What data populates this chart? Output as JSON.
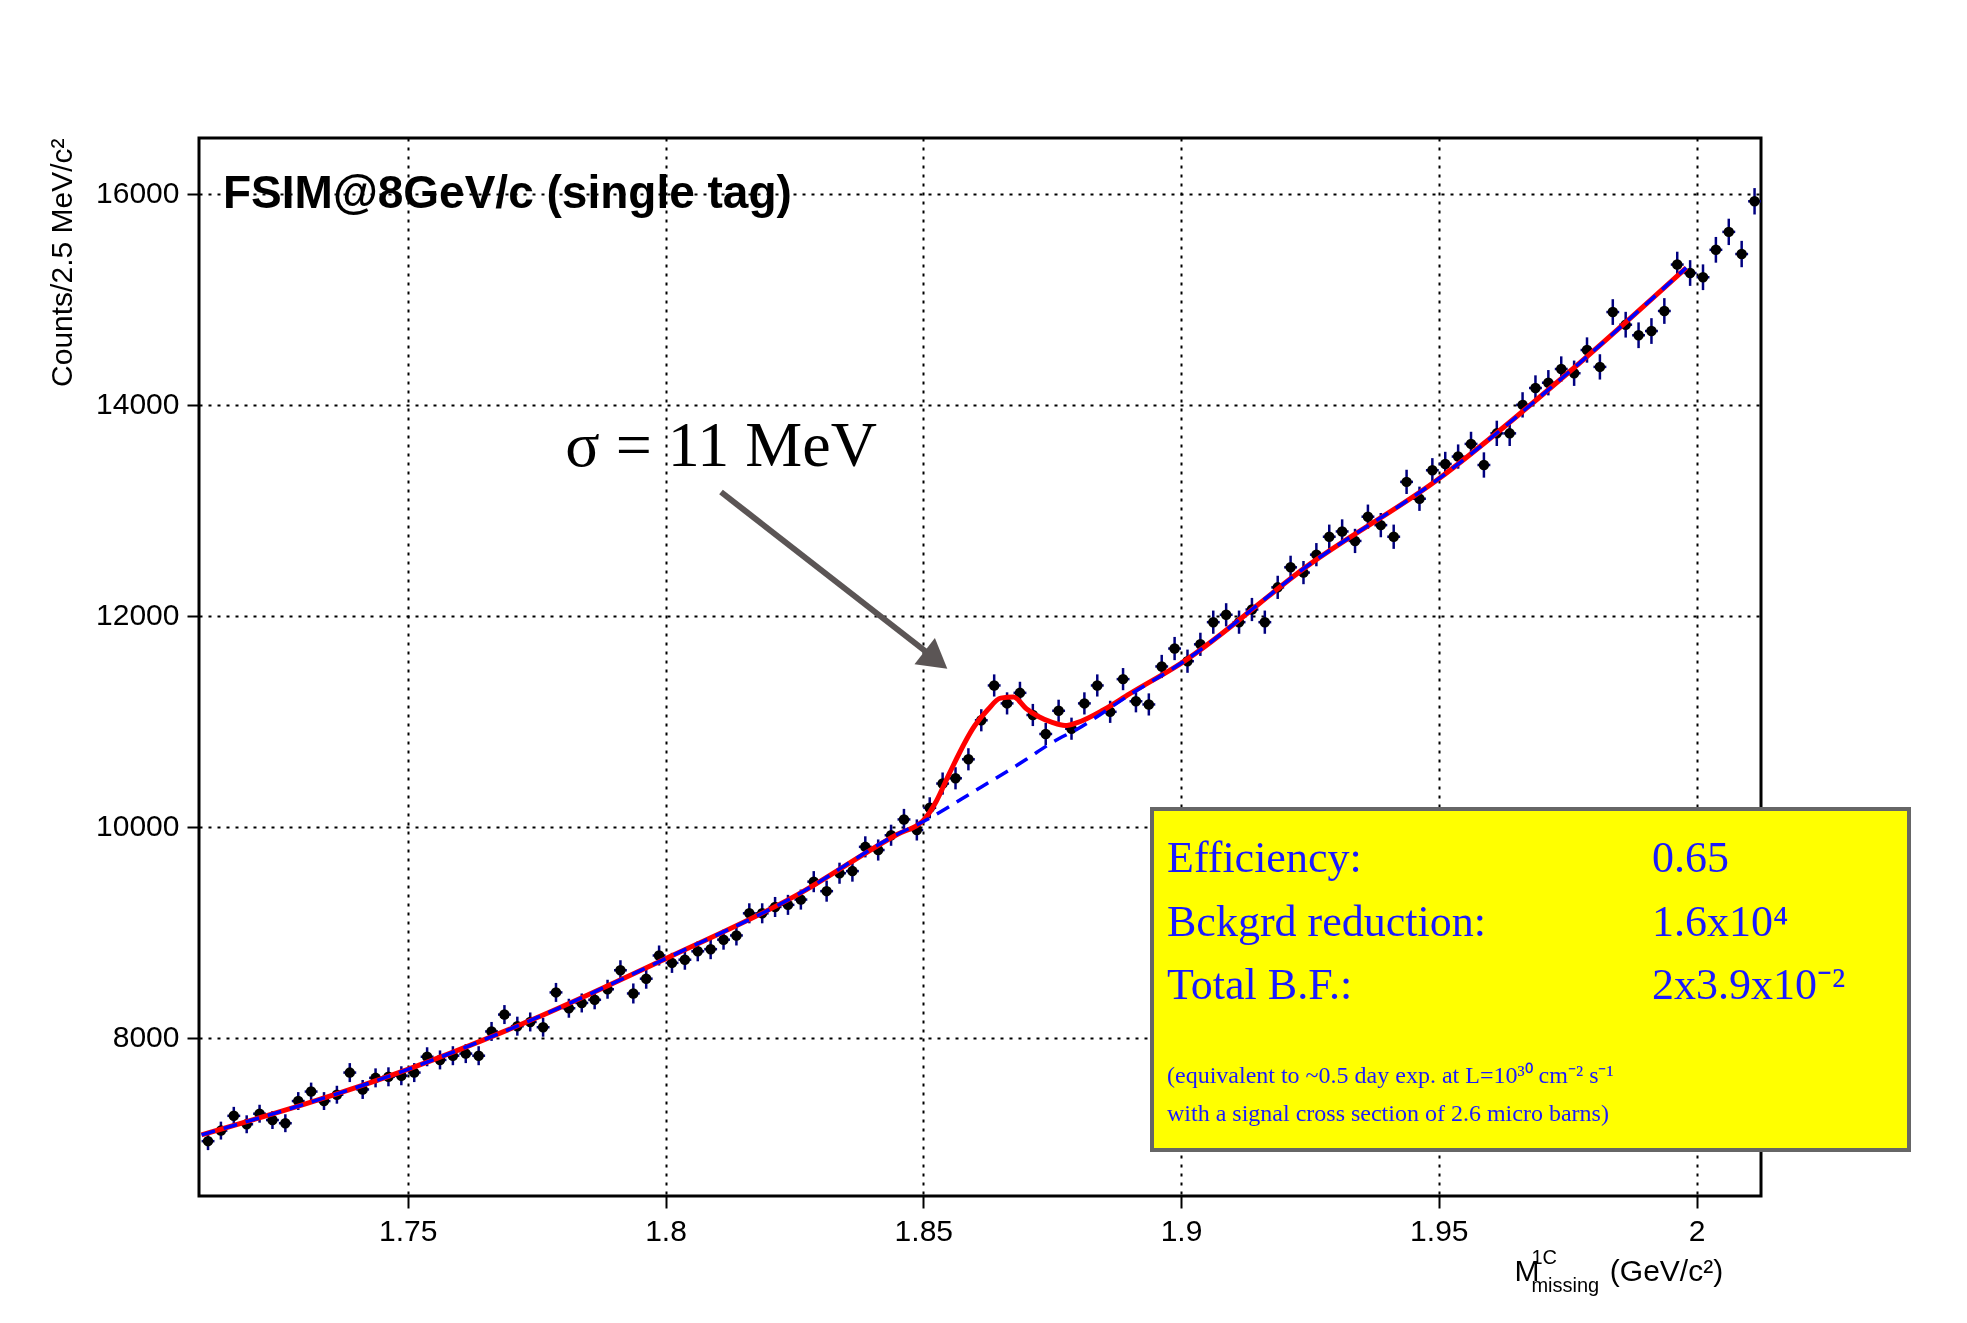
{
  "chart_data": {
    "type": "scatter",
    "title": "FSIM@8GeV/c (single tag)",
    "xlabel": "M$^{1C}$$_{missing}$ (GeV/c²)",
    "ylabel": "Counts/2.5 MeV/c²",
    "xlim": [
      1.7095,
      2.0125
    ],
    "ylim": [
      6500,
      16530
    ],
    "xticks": [
      1.75,
      1.8,
      1.85,
      1.9,
      1.95,
      2
    ],
    "yticks": [
      8000,
      10000,
      12000,
      14000,
      16000
    ],
    "grid": true,
    "series": [
      {
        "color": "#000000",
        "marker": "circle",
        "x": [
          1.71125,
          1.71375,
          1.71625,
          1.71875,
          1.72125,
          1.72375,
          1.72625,
          1.72875,
          1.73125,
          1.73375,
          1.73625,
          1.73875,
          1.74125,
          1.74375,
          1.74625,
          1.74875,
          1.75125,
          1.75375,
          1.75625,
          1.75875,
          1.76125,
          1.76375,
          1.76625,
          1.76875,
          1.77125,
          1.77375,
          1.77625,
          1.77875,
          1.78125,
          1.78375,
          1.78625,
          1.78875,
          1.79125,
          1.79375,
          1.79625,
          1.79875,
          1.80125,
          1.80375,
          1.80625,
          1.80875,
          1.81125,
          1.81375,
          1.81625,
          1.81875,
          1.82125,
          1.82375,
          1.82625,
          1.82875,
          1.83125,
          1.83375,
          1.83625,
          1.83875,
          1.84125,
          1.84375,
          1.84625,
          1.84875,
          1.85125,
          1.85375,
          1.85625,
          1.85875,
          1.86125,
          1.86375,
          1.86625,
          1.86875,
          1.87125,
          1.87375,
          1.87625,
          1.87875,
          1.88125,
          1.88375,
          1.88625,
          1.88875,
          1.89125,
          1.89375,
          1.89625,
          1.89875,
          1.90125,
          1.90375,
          1.90625,
          1.90875,
          1.91125,
          1.91375,
          1.91625,
          1.91875,
          1.92125,
          1.92375,
          1.92625,
          1.92875,
          1.93125,
          1.93375,
          1.93625,
          1.93875,
          1.94125,
          1.94375,
          1.94625,
          1.94875,
          1.95125,
          1.95375,
          1.95625,
          1.95875,
          1.96125,
          1.96375,
          1.96625,
          1.96875,
          1.97125,
          1.97375,
          1.97625,
          1.97875,
          1.98125,
          1.98375,
          1.98625,
          1.98875,
          1.99125,
          1.99375,
          1.99625,
          1.99875,
          2.00125,
          2.00375,
          2.00625,
          2.00875,
          2.01125
        ],
        "values": [
          7020,
          7120,
          7260,
          7180,
          7280,
          7220,
          7190,
          7400,
          7490,
          7400,
          7460,
          7670,
          7510,
          7620,
          7630,
          7640,
          7670,
          7820,
          7790,
          7830,
          7850,
          7830,
          8060,
          8220,
          8110,
          8150,
          8100,
          8430,
          8280,
          8330,
          8360,
          8460,
          8640,
          8420,
          8560,
          8780,
          8710,
          8740,
          8820,
          8840,
          8930,
          8970,
          9180,
          9180,
          9240,
          9260,
          9310,
          9480,
          9390,
          9560,
          9580,
          9810,
          9780,
          9920,
          10070,
          9970,
          10180,
          10410,
          10460,
          10640,
          11010,
          11340,
          11170,
          11270,
          11060,
          10880,
          11100,
          10930,
          11170,
          11340,
          11090,
          11400,
          11190,
          11160,
          11520,
          11690,
          11570,
          11730,
          11940,
          12010,
          11940,
          12060,
          11940,
          12270,
          12460,
          12410,
          12580,
          12750,
          12800,
          12710,
          12940,
          12860,
          12750,
          13270,
          13110,
          13380,
          13440,
          13510,
          13630,
          13430,
          13730,
          13730,
          14000,
          14160,
          14210,
          14340,
          14300,
          14520,
          14360,
          14880,
          14760,
          14660,
          14700,
          14890,
          15330,
          15250,
          15210,
          15470,
          15640,
          15430,
          15930
        ],
        "errors": [
          85,
          85,
          85,
          85,
          85,
          85,
          85,
          85,
          85,
          85,
          85,
          90,
          90,
          90,
          90,
          90,
          90,
          90,
          90,
          90,
          90,
          90,
          90,
          90,
          90,
          90,
          90,
          90,
          90,
          90,
          90,
          90,
          95,
          95,
          95,
          95,
          95,
          95,
          95,
          95,
          95,
          95,
          95,
          95,
          95,
          95,
          95,
          100,
          100,
          100,
          100,
          100,
          100,
          100,
          100,
          100,
          100,
          105,
          105,
          105,
          105,
          105,
          105,
          105,
          105,
          105,
          105,
          105,
          105,
          105,
          105,
          105,
          105,
          105,
          110,
          110,
          110,
          110,
          110,
          110,
          110,
          110,
          110,
          110,
          110,
          110,
          110,
          115,
          115,
          115,
          115,
          115,
          115,
          115,
          115,
          115,
          115,
          115,
          115,
          120,
          120,
          120,
          120,
          120,
          120,
          120,
          120,
          120,
          120,
          122,
          122,
          122,
          122,
          122,
          122,
          122,
          122,
          122,
          125,
          125,
          125
        ],
        "xerrors": [
          0.00125,
          0.00125,
          0.00125,
          0.00125,
          0.00125,
          0.00125,
          0.00125,
          0.00125,
          0.00125,
          0.00125,
          0.00125,
          0.00125,
          0.00125,
          0.00125,
          0.00125,
          0.00125,
          0.00125,
          0.00125,
          0.00125,
          0.00125,
          0.00125,
          0.00125,
          0.00125,
          0.00125,
          0.00125,
          0.00125,
          0.00125,
          0.00125,
          0.00125,
          0.00125,
          0.00125,
          0.00125,
          0.00125,
          0.00125,
          0.00125,
          0.00125,
          0.00125,
          0.00125,
          0.00125,
          0.00125,
          0.00125,
          0.00125,
          0.00125,
          0.00125,
          0.00125,
          0.00125,
          0.00125,
          0.00125,
          0.00125,
          0.00125,
          0.00125,
          0.00125,
          0.00125,
          0.00125,
          0.00125,
          0.00125,
          0.00125,
          0.00125,
          0.00125,
          0.00125,
          0.00125,
          0.00125,
          0.00125,
          0.00125,
          0.00125,
          0.00125,
          0.00125,
          0.00125,
          0.00125,
          0.00125,
          0.00125,
          0.00125,
          0.00125,
          0.00125,
          0.00125,
          0.00125,
          0.00125,
          0.00125,
          0.00125,
          0.00125,
          0.00125,
          0.00125,
          0.00125,
          0.00125,
          0.00125,
          0.00125,
          0.00125,
          0.00125,
          0.00125,
          0.00125,
          0.00125,
          0.00125,
          0.00125,
          0.00125,
          0.00125,
          0.00125,
          0.00125,
          0.00125,
          0.00125,
          0.00125,
          0.00125,
          0.00125,
          0.00125,
          0.00125,
          0.00125,
          0.00125,
          0.00125,
          0.00125,
          0.00125,
          0.00125,
          0.00125,
          0.00125,
          0.00125,
          0.00125,
          0.00125,
          0.00125,
          0.00125,
          0.00125,
          0.00125,
          0.00125,
          0.00125
        ]
      },
      {
        "type": "line",
        "color": "#ff0000",
        "line_style": "solid",
        "x": [
          1.71,
          1.75,
          1.775,
          1.8,
          1.825,
          1.845,
          1.85,
          1.8525,
          1.855,
          1.86,
          1.8625,
          1.865,
          1.8675,
          1.87,
          1.875,
          1.8775,
          1.88,
          1.885,
          1.89,
          1.9,
          1.925,
          1.95,
          1.975,
          1.998
        ],
        "values": [
          7080,
          7700,
          8190,
          8750,
          9340,
          9930,
          10060,
          10240,
          10500,
          10960,
          11110,
          11220,
          11230,
          11120,
          10990,
          10960,
          10990,
          11110,
          11260,
          11550,
          12490,
          13300,
          14300,
          15300
        ]
      },
      {
        "type": "line",
        "color": "#0000ff",
        "line_style": "dashed",
        "x": [
          1.71,
          1.75,
          1.775,
          1.8,
          1.825,
          1.845,
          1.85,
          1.86,
          1.87,
          1.875,
          1.88,
          1.89,
          1.9,
          1.925,
          1.95,
          1.975,
          1.998
        ],
        "values": [
          7080,
          7700,
          8190,
          8750,
          9340,
          9930,
          10050,
          10340,
          10640,
          10800,
          10930,
          11250,
          11550,
          12490,
          13300,
          14300,
          15300
        ]
      }
    ],
    "annotations": [
      "σ = 11 MeV",
      "Efficiency:",
      "0.65",
      "Bckgrd reduction:",
      "1.6x10⁴",
      "Total B.F.:",
      "2x3.9x10⁻²",
      "(equivalent to ~0.5 day exp. at L=10³⁰ cm⁻² s⁻¹",
      "with a signal cross section of 2.6 micro barns)"
    ]
  }
}
